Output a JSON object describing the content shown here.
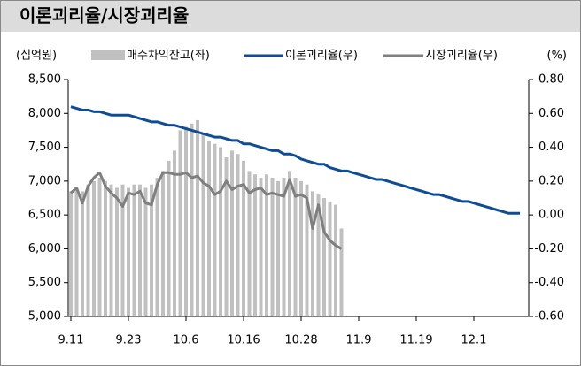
{
  "chart_data": {
    "type": "bar-line",
    "title": "이론괴리율/시장괴리율",
    "y_unit": "(십억원)",
    "y2_unit": "(%)",
    "categories": [
      "9.11",
      null,
      null,
      null,
      null,
      null,
      null,
      null,
      null,
      null,
      "9.23",
      null,
      null,
      null,
      null,
      null,
      null,
      null,
      null,
      null,
      "10.6",
      null,
      null,
      null,
      null,
      null,
      null,
      null,
      null,
      null,
      "10.16",
      null,
      null,
      null,
      null,
      null,
      null,
      null,
      null,
      null,
      "10.28",
      null,
      null,
      null,
      null,
      null,
      null,
      null,
      null,
      null,
      "11.9",
      null,
      null,
      null,
      null,
      null,
      null,
      null,
      null,
      null,
      "11.19",
      null,
      null,
      null,
      null,
      null,
      null,
      null,
      null,
      null,
      "12.1",
      null,
      null,
      null,
      null,
      null,
      null,
      null,
      null
    ],
    "series": [
      {
        "name": "매수차익잔고(좌)",
        "kind": "bar",
        "color": "#c0c0c0",
        "values": [
          6850,
          6900,
          6850,
          6950,
          7000,
          7050,
          7000,
          6950,
          6900,
          6950,
          6900,
          6950,
          6950,
          6900,
          6950,
          7050,
          7150,
          7300,
          7450,
          7750,
          7800,
          7850,
          7900,
          7700,
          7600,
          7550,
          7500,
          7350,
          7450,
          7400,
          7300,
          7150,
          7100,
          7050,
          7100,
          7050,
          7000,
          7050,
          7150,
          7050,
          7000,
          6950,
          6850,
          6800,
          6750,
          6700,
          6650,
          6300,
          null,
          null,
          null,
          null,
          null,
          null,
          null,
          null,
          null,
          null,
          null,
          null,
          null,
          null,
          null,
          null,
          null,
          null,
          null,
          null,
          null,
          null,
          null,
          null,
          null,
          null,
          null,
          null,
          null,
          null,
          null
        ]
      },
      {
        "name": "이론괴리율(우)",
        "kind": "line",
        "axis": "y2",
        "color": "#0f4c96",
        "values": [
          0.64,
          0.63,
          0.62,
          0.62,
          0.61,
          0.61,
          0.6,
          0.59,
          0.59,
          0.59,
          0.59,
          0.58,
          0.57,
          0.56,
          0.55,
          0.55,
          0.54,
          0.53,
          0.53,
          0.52,
          0.51,
          0.5,
          0.49,
          0.48,
          0.47,
          0.46,
          0.46,
          0.45,
          0.44,
          0.44,
          0.42,
          0.42,
          0.41,
          0.4,
          0.39,
          0.38,
          0.38,
          0.36,
          0.36,
          0.35,
          0.33,
          0.32,
          0.31,
          0.3,
          0.3,
          0.28,
          0.27,
          0.26,
          0.26,
          0.25,
          0.24,
          0.23,
          0.22,
          0.21,
          0.21,
          0.2,
          0.19,
          0.18,
          0.17,
          0.16,
          0.15,
          0.14,
          0.13,
          0.12,
          0.12,
          0.11,
          0.1,
          0.09,
          0.08,
          0.08,
          0.07,
          0.06,
          0.05,
          0.04,
          0.03,
          0.02,
          0.01,
          0.01,
          0.01
        ]
      },
      {
        "name": "시장괴리율(우)",
        "kind": "line",
        "axis": "y2",
        "color": "#7f7f7f",
        "values": [
          0.13,
          0.16,
          0.07,
          0.17,
          0.22,
          0.25,
          0.17,
          0.13,
          0.1,
          0.05,
          0.13,
          0.12,
          0.14,
          0.07,
          0.06,
          0.18,
          0.25,
          0.25,
          0.24,
          0.24,
          0.25,
          0.22,
          0.23,
          0.19,
          0.17,
          0.12,
          0.14,
          0.2,
          0.15,
          0.17,
          0.18,
          0.13,
          0.15,
          0.16,
          0.12,
          0.13,
          0.12,
          0.11,
          0.21,
          0.11,
          0.12,
          0.1,
          -0.08,
          0.06,
          -0.1,
          -0.15,
          -0.18,
          -0.2,
          null,
          null,
          null,
          null,
          null,
          null,
          null,
          null,
          null,
          null,
          null,
          null,
          null,
          null,
          null,
          null,
          null,
          null,
          null,
          null,
          null,
          null,
          null,
          null,
          null,
          null,
          null,
          null,
          null,
          null,
          null
        ]
      }
    ],
    "ylim": [
      5000,
      8500
    ],
    "yticks": [
      {
        "value": 5000,
        "label": "5,000"
      },
      {
        "value": 5500,
        "label": "5,500"
      },
      {
        "value": 6000,
        "label": "6,000"
      },
      {
        "value": 6500,
        "label": "6,500"
      },
      {
        "value": 7000,
        "label": "7,000"
      },
      {
        "value": 7500,
        "label": "7,500"
      },
      {
        "value": 8000,
        "label": "8,000"
      },
      {
        "value": 8500,
        "label": "8,500"
      }
    ],
    "y2lim": [
      -0.6,
      0.8
    ],
    "y2ticks": [
      {
        "value": -0.6,
        "label": "-0.60"
      },
      {
        "value": -0.4,
        "label": "-0.40"
      },
      {
        "value": -0.2,
        "label": "-0.20"
      },
      {
        "value": 0,
        "label": "0.00"
      },
      {
        "value": 0.2,
        "label": "0.20"
      },
      {
        "value": 0.4,
        "label": "0.40"
      },
      {
        "value": 0.6,
        "label": "0.60"
      },
      {
        "value": 0.8,
        "label": "0.80"
      }
    ],
    "grid": false
  }
}
